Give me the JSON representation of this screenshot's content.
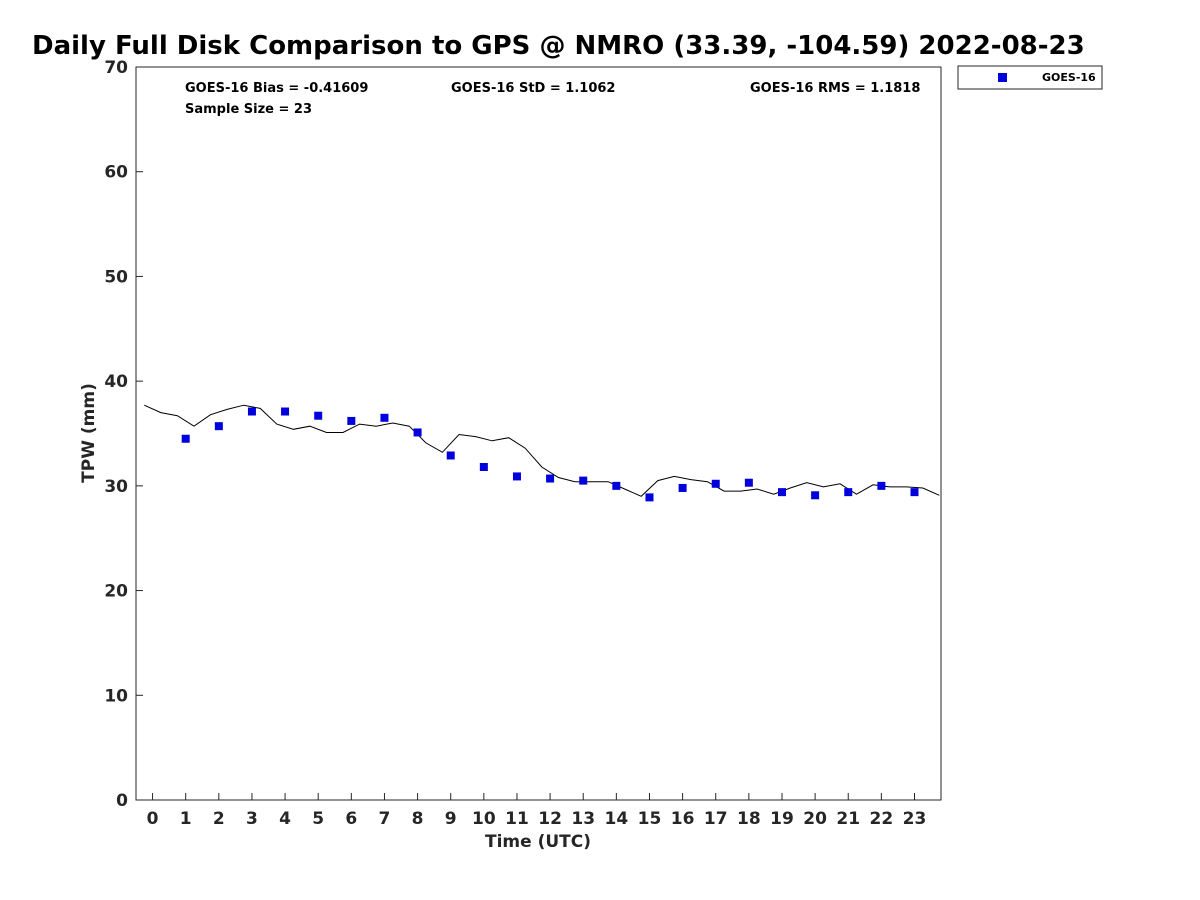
{
  "chart_data": {
    "type": "scatter",
    "title": "Daily Full Disk Comparison to GPS @ NMRO (33.39, -104.59) 2022-08-23",
    "xlabel": "Time (UTC)",
    "ylabel": "TPW (mm)",
    "xlim": [
      -0.5,
      23.8
    ],
    "ylim": [
      0,
      70
    ],
    "x_ticks": [
      "0",
      "1",
      "2",
      "3",
      "4",
      "5",
      "6",
      "7",
      "8",
      "9",
      "10",
      "11",
      "12",
      "13",
      "14",
      "15",
      "16",
      "17",
      "18",
      "19",
      "20",
      "21",
      "22",
      "23"
    ],
    "y_ticks": [
      "0",
      "10",
      "20",
      "30",
      "40",
      "50",
      "60",
      "70"
    ],
    "grid": false,
    "legend_position": "outside-top-right",
    "stats": {
      "bias": "GOES-16 Bias = -0.41609",
      "std": "GOES-16 StD = 1.1062",
      "rms": "GOES-16 RMS = 1.1818",
      "sample": "Sample Size = 23"
    },
    "series": [
      {
        "name": "GOES-16",
        "marker": "square",
        "color": "#0000dd",
        "x": [
          1,
          2,
          3,
          4,
          5,
          6,
          7,
          8,
          9,
          10,
          11,
          12,
          13,
          14,
          15,
          16,
          17,
          18,
          19,
          20,
          21,
          22,
          23
        ],
        "y": [
          34.5,
          35.7,
          37.1,
          37.1,
          36.7,
          36.2,
          36.5,
          35.1,
          32.9,
          31.8,
          30.9,
          30.7,
          30.5,
          30.0,
          28.9,
          29.8,
          30.2,
          30.3,
          29.4,
          29.1,
          29.4,
          30.0,
          29.4
        ]
      },
      {
        "marker": "line",
        "color": "#000000",
        "x": [
          -0.25,
          0.25,
          0.75,
          1.25,
          1.75,
          2.25,
          2.75,
          3.25,
          3.75,
          4.25,
          4.75,
          5.25,
          5.75,
          6.25,
          6.75,
          7.25,
          7.75,
          8.25,
          8.75,
          9.25,
          9.75,
          10.25,
          10.75,
          11.25,
          11.75,
          12.25,
          12.75,
          13.25,
          13.75,
          14.25,
          14.75,
          15.25,
          15.75,
          16.25,
          16.75,
          17.25,
          17.75,
          18.25,
          18.75,
          19.25,
          19.75,
          20.25,
          20.75,
          21.25,
          21.75,
          22.25,
          22.75,
          23.25,
          23.75
        ],
        "y": [
          37.7,
          37.0,
          36.7,
          35.7,
          36.8,
          37.3,
          37.7,
          37.4,
          35.9,
          35.4,
          35.7,
          35.1,
          35.1,
          35.9,
          35.7,
          36.0,
          35.7,
          34.1,
          33.2,
          34.9,
          34.7,
          34.3,
          34.6,
          33.6,
          31.8,
          30.8,
          30.4,
          30.4,
          30.4,
          29.7,
          29.0,
          30.5,
          30.9,
          30.6,
          30.4,
          29.5,
          29.5,
          29.7,
          29.2,
          29.8,
          30.3,
          29.9,
          30.2,
          29.2,
          30.1,
          29.9,
          29.9,
          29.8,
          29.1
        ]
      }
    ]
  }
}
